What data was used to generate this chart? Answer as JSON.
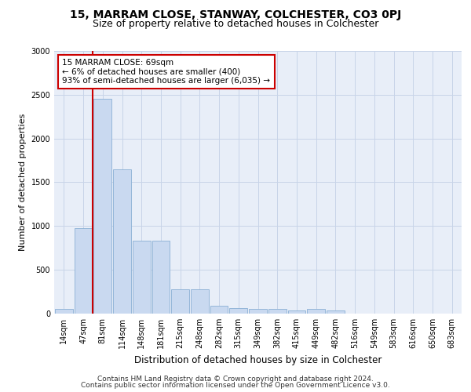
{
  "title": "15, MARRAM CLOSE, STANWAY, COLCHESTER, CO3 0PJ",
  "subtitle": "Size of property relative to detached houses in Colchester",
  "xlabel": "Distribution of detached houses by size in Colchester",
  "ylabel": "Number of detached properties",
  "categories": [
    "14sqm",
    "47sqm",
    "81sqm",
    "114sqm",
    "148sqm",
    "181sqm",
    "215sqm",
    "248sqm",
    "282sqm",
    "315sqm",
    "349sqm",
    "382sqm",
    "415sqm",
    "449sqm",
    "482sqm",
    "516sqm",
    "549sqm",
    "583sqm",
    "616sqm",
    "650sqm",
    "683sqm"
  ],
  "values": [
    50,
    980,
    2450,
    1650,
    830,
    830,
    280,
    280,
    90,
    65,
    55,
    50,
    40,
    50,
    40,
    0,
    0,
    0,
    0,
    0,
    0
  ],
  "bar_color": "#c9d9f0",
  "bar_edge_color": "#8aafd4",
  "grid_color": "#c8d4e8",
  "background_color": "#e8eef8",
  "annotation_text": "15 MARRAM CLOSE: 69sqm\n← 6% of detached houses are smaller (400)\n93% of semi-detached houses are larger (6,035) →",
  "annotation_box_color": "#ffffff",
  "annotation_box_edge": "#cc0000",
  "property_line_color": "#cc0000",
  "ylim": [
    0,
    3000
  ],
  "yticks": [
    0,
    500,
    1000,
    1500,
    2000,
    2500,
    3000
  ],
  "footer_line1": "Contains HM Land Registry data © Crown copyright and database right 2024.",
  "footer_line2": "Contains public sector information licensed under the Open Government Licence v3.0.",
  "title_fontsize": 10,
  "subtitle_fontsize": 9,
  "xlabel_fontsize": 8.5,
  "ylabel_fontsize": 8,
  "tick_fontsize": 7,
  "annotation_fontsize": 7.5,
  "footer_fontsize": 6.5
}
